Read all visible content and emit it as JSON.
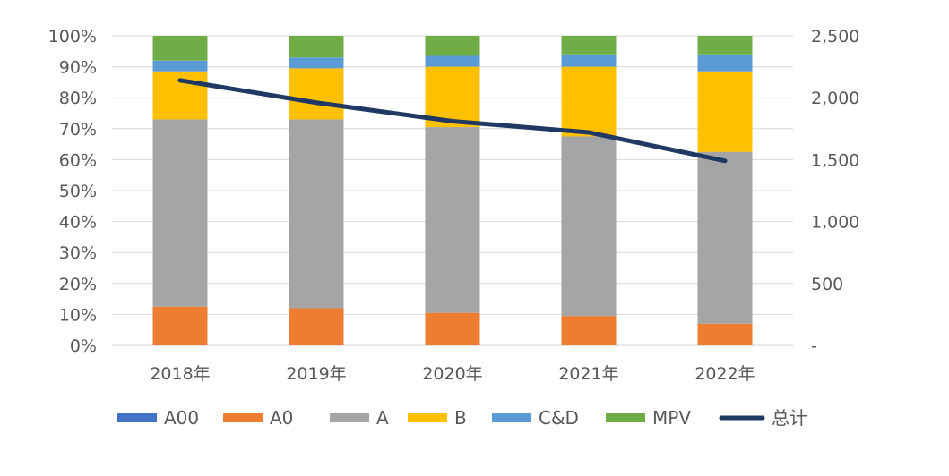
{
  "chart_data": {
    "type": "bar",
    "stacked": true,
    "categories": [
      "2018年",
      "2019年",
      "2020年",
      "2021年",
      "2022年"
    ],
    "series": [
      {
        "name": "A00",
        "color": "#4472C4",
        "values": [
          0.0,
          0.0,
          0.0,
          0.0,
          0.0
        ]
      },
      {
        "name": "A0",
        "color": "#ED7D31",
        "values": [
          12.5,
          12.0,
          10.5,
          9.5,
          7.0
        ]
      },
      {
        "name": "A",
        "color": "#A5A5A5",
        "values": [
          60.5,
          61.0,
          60.0,
          58.0,
          55.5
        ]
      },
      {
        "name": "B",
        "color": "#FFC000",
        "values": [
          15.5,
          16.5,
          19.5,
          22.5,
          26.0
        ]
      },
      {
        "name": "C&D",
        "color": "#5B9BD5",
        "values": [
          3.5,
          3.5,
          3.5,
          4.0,
          5.5
        ]
      },
      {
        "name": "MPV",
        "color": "#70AD47",
        "values": [
          8.0,
          7.0,
          6.5,
          6.0,
          6.0
        ]
      }
    ],
    "line_series": {
      "name": "总计",
      "color": "#203864",
      "axis": "right",
      "values": [
        2140,
        1960,
        1810,
        1720,
        1490
      ]
    },
    "y_left": {
      "range": [
        0,
        100
      ],
      "ticks": [
        "0%",
        "10%",
        "20%",
        "30%",
        "40%",
        "50%",
        "60%",
        "70%",
        "80%",
        "90%",
        "100%"
      ]
    },
    "y_right": {
      "range": [
        0,
        2500
      ],
      "ticks": [
        "-",
        "500",
        "1,000",
        "1,500",
        "2,000",
        "2,500"
      ]
    },
    "grid": true,
    "legend_position": "bottom"
  }
}
